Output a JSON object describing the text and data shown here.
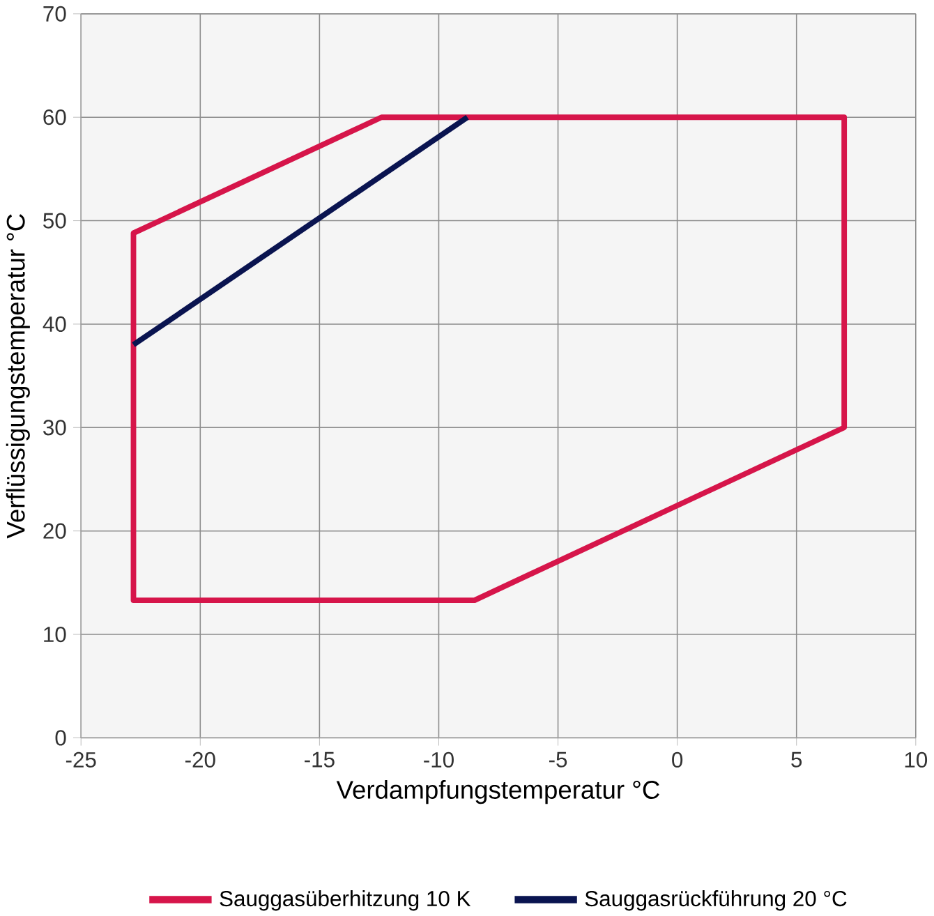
{
  "chart_data": {
    "type": "line",
    "xlabel": "Verdampfungstemperatur °C",
    "ylabel": "Verflüssigungstemperatur °C",
    "series": [
      {
        "name": "Sauggasüberhitzung 10 K",
        "color": "#d6154a",
        "x": [
          -22.8,
          -22.8,
          -12.4,
          7,
          7,
          -8.5,
          -22.8,
          -22.8
        ],
        "values": [
          13.3,
          48.8,
          60,
          60,
          30,
          13.3,
          13.3,
          48.8
        ]
      },
      {
        "name": "Sauggasrückführung 20 °C",
        "color": "#0a1450",
        "x": [
          -22.8,
          -8.8
        ],
        "values": [
          38,
          60
        ]
      }
    ],
    "xlim": [
      -25,
      10
    ],
    "ylim": [
      0,
      70
    ],
    "xticks": [
      -25,
      -20,
      -15,
      -10,
      -5,
      0,
      5,
      10
    ],
    "yticks": [
      0,
      10,
      20,
      30,
      40,
      50,
      60,
      70
    ],
    "grid": true,
    "legend": "bottom",
    "marker": "none",
    "line_style": "solid"
  }
}
